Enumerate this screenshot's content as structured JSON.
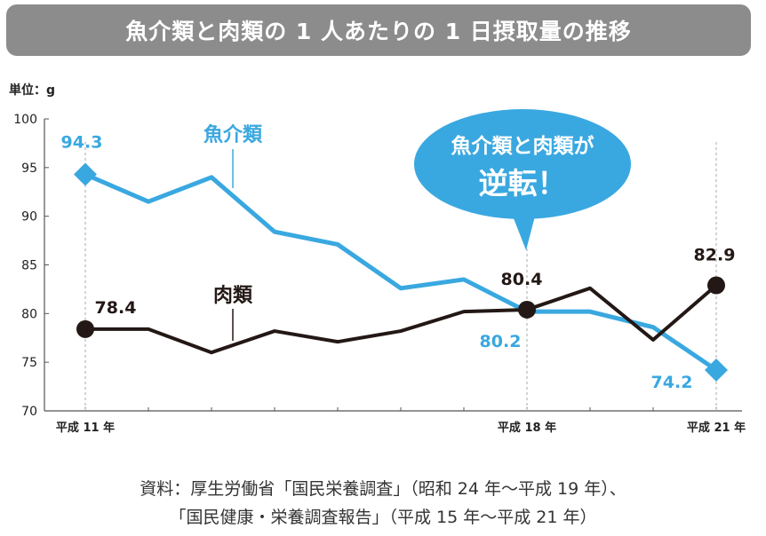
{
  "title": "魚介類と肉類の 1 人あたりの 1 日摂取量の推移",
  "unit_label": "単位：g",
  "callout": {
    "line1": "魚介類と肉類が",
    "line2": "逆転！"
  },
  "source_line1": "資料：厚生労働省「国民栄養調査」（昭和 24 年〜平成 19 年）、",
  "source_line2": "「国民健康・栄養調査報告」（平成 15 年〜平成 21 年）",
  "colors": {
    "seafood": "#3aa8e0",
    "meat": "#231815",
    "callout": "#3aa8e0",
    "title_bg": "#8c8c8c"
  },
  "chart_data": {
    "type": "line",
    "x": [
      11,
      12,
      13,
      14,
      15,
      16,
      17,
      18,
      19,
      20,
      21
    ],
    "x_ticks": [
      {
        "x": 11,
        "label": "平成 11 年"
      },
      {
        "x": 18,
        "label": "平成 18 年"
      },
      {
        "x": 21,
        "label": "平成 21 年"
      }
    ],
    "ylim": [
      70,
      100
    ],
    "y_ticks": [
      70,
      75,
      80,
      85,
      90,
      95,
      100
    ],
    "series": [
      {
        "name": "魚介類",
        "values": [
          94.3,
          91.5,
          94.0,
          88.4,
          87.1,
          82.6,
          83.5,
          80.2,
          80.2,
          78.6,
          74.2
        ],
        "labels": [
          {
            "x": 11,
            "text": "94.3"
          },
          {
            "x": 18,
            "text": "80.2"
          },
          {
            "x": 21,
            "text": "74.2"
          }
        ]
      },
      {
        "name": "肉類",
        "values": [
          78.4,
          78.4,
          76.0,
          78.2,
          77.1,
          78.2,
          80.2,
          80.4,
          82.6,
          77.3,
          82.9
        ],
        "labels": [
          {
            "x": 11,
            "text": "78.4"
          },
          {
            "x": 18,
            "text": "80.4"
          },
          {
            "x": 21,
            "text": "82.9"
          }
        ]
      }
    ],
    "grid": false
  }
}
